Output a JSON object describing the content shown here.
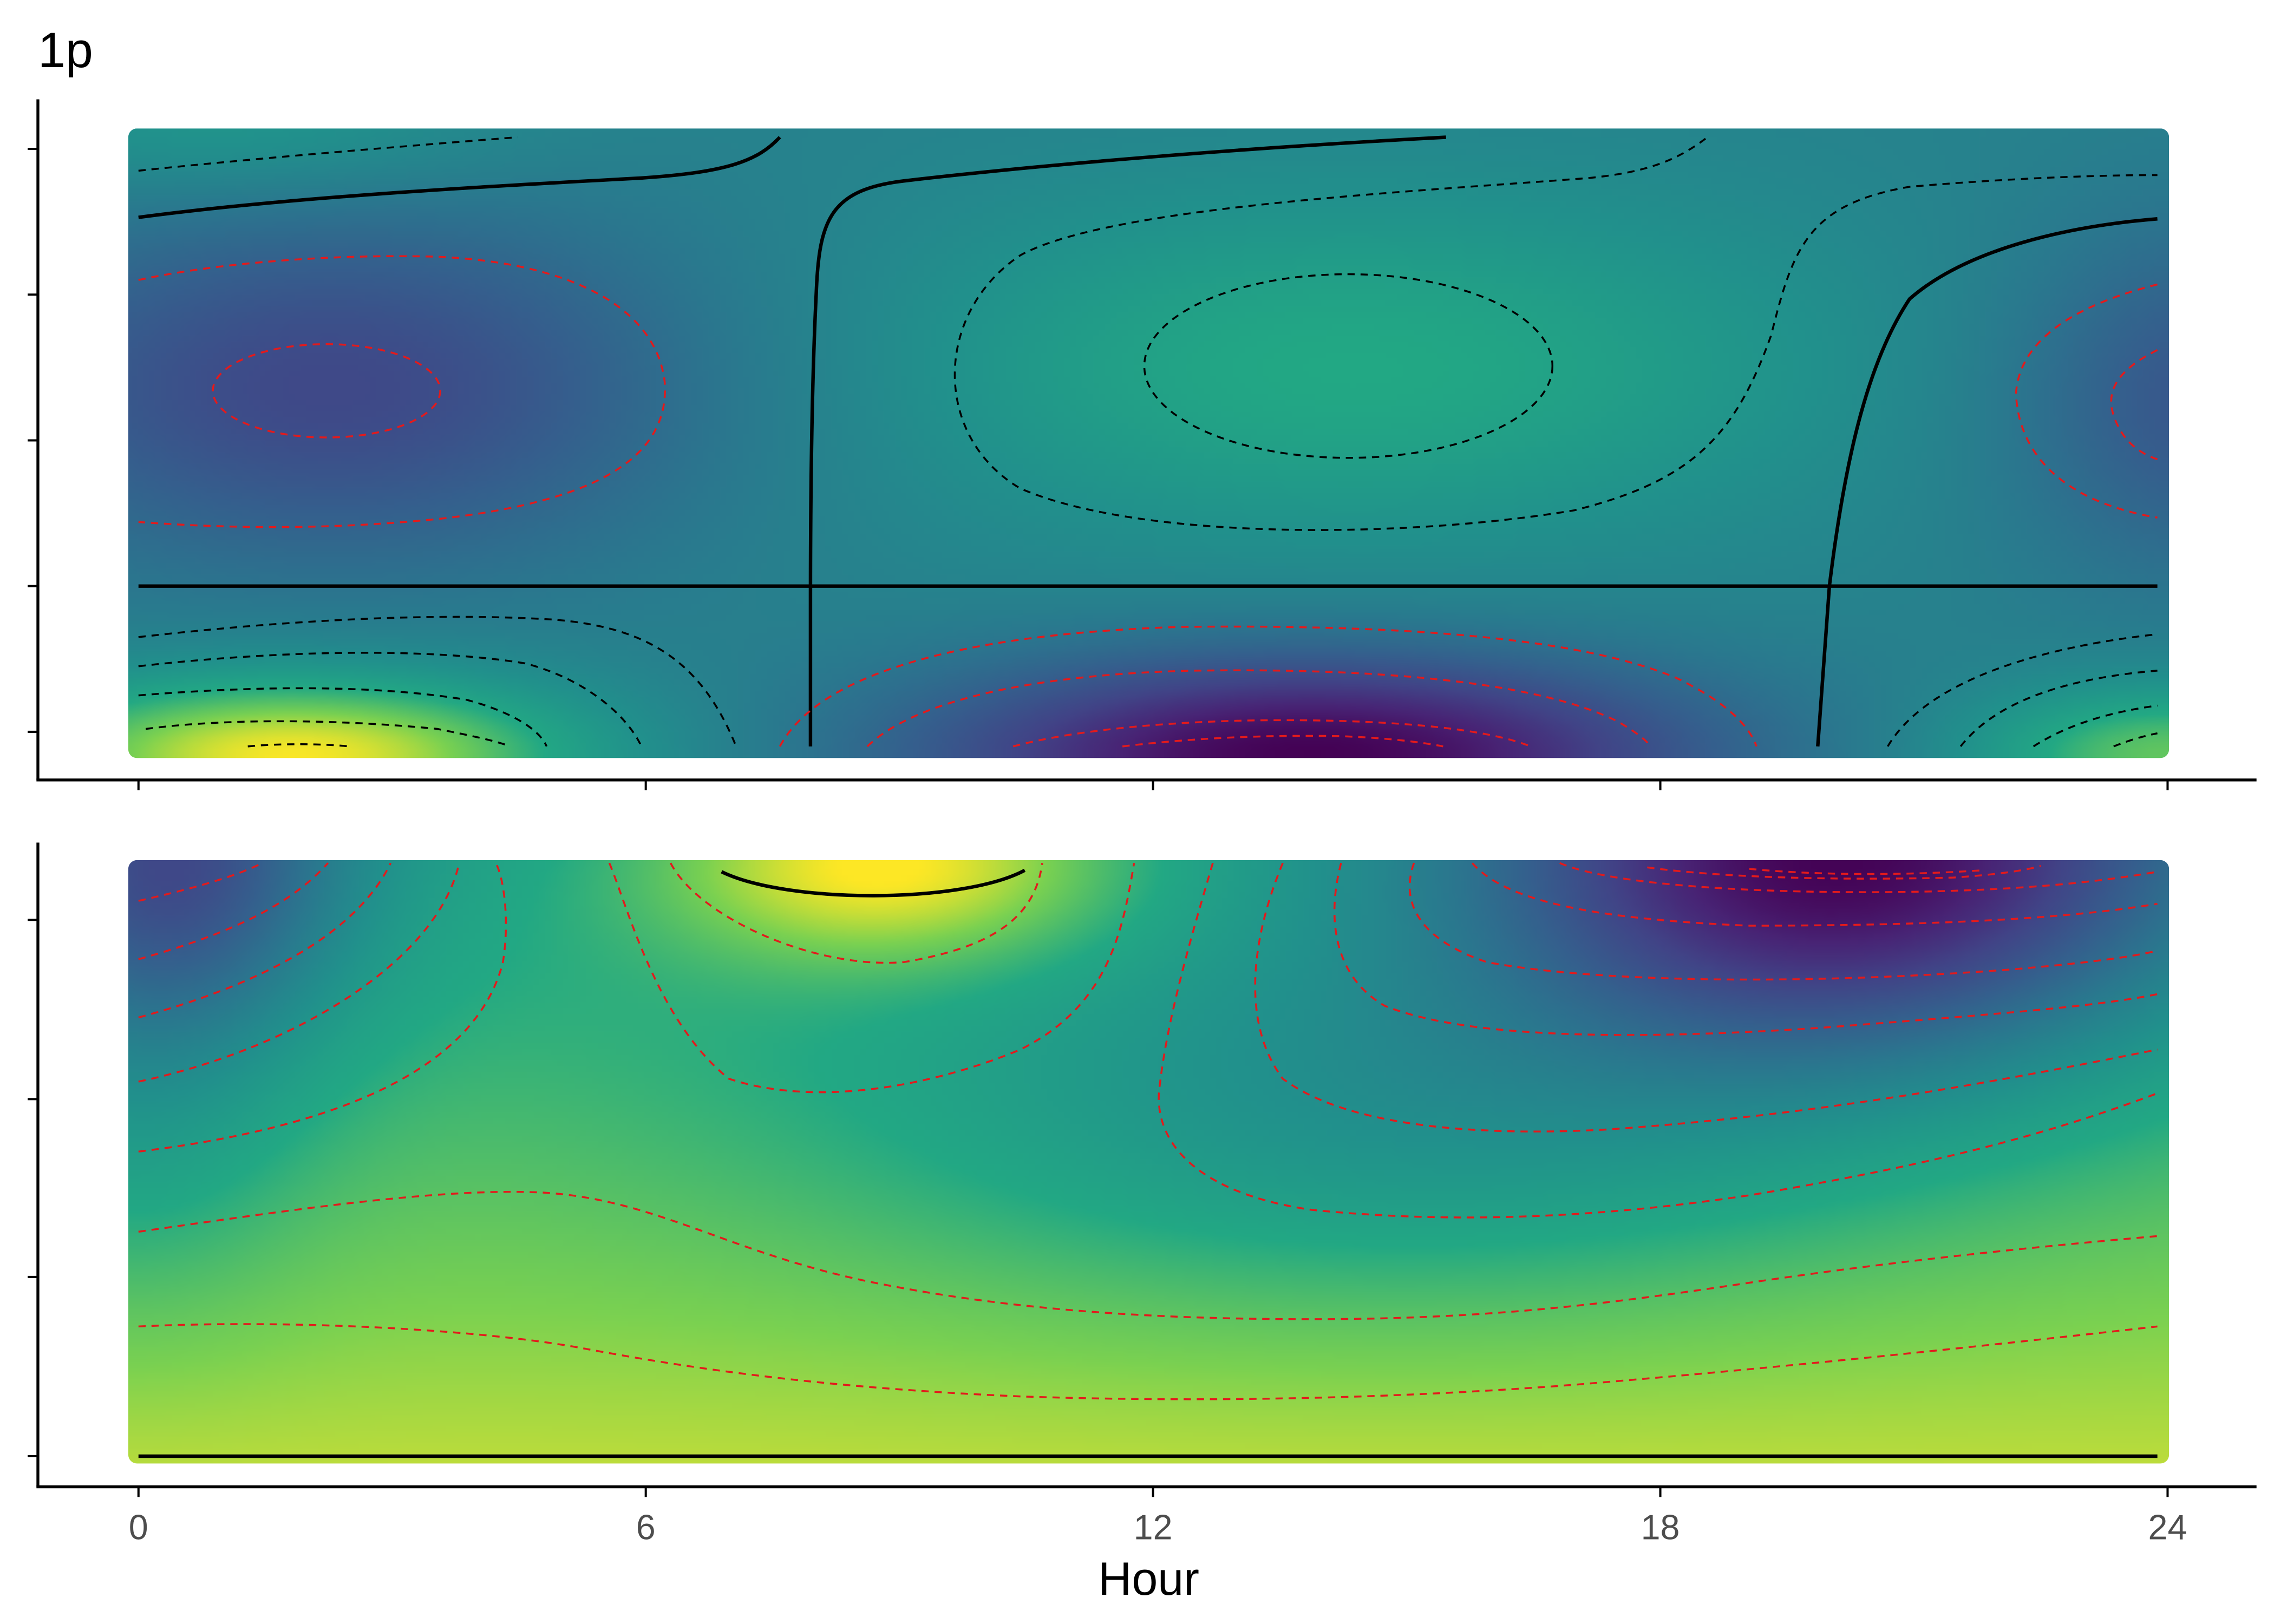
{
  "figure": {
    "tag": "1p"
  },
  "chart_data": {
    "type": "heatmap",
    "colormap": "viridis",
    "xlabel": "Hour",
    "x_ticks": [
      0,
      6,
      12,
      18,
      24
    ],
    "xlim": [
      0,
      24
    ],
    "grid": false,
    "legend": "none",
    "contour_colors": {
      "positive": "#000000",
      "negative": "#e31a1c"
    },
    "panels": [
      {
        "id": "top",
        "y_tick_count": 5,
        "y_tick_labels_visible": false,
        "description_fields": {
          "solid_zero_contours": true,
          "dashed_black": "positive levels",
          "dashed_red": "negative levels"
        }
      },
      {
        "id": "bottom",
        "y_tick_count": 4,
        "y_tick_labels_visible": false
      }
    ]
  }
}
